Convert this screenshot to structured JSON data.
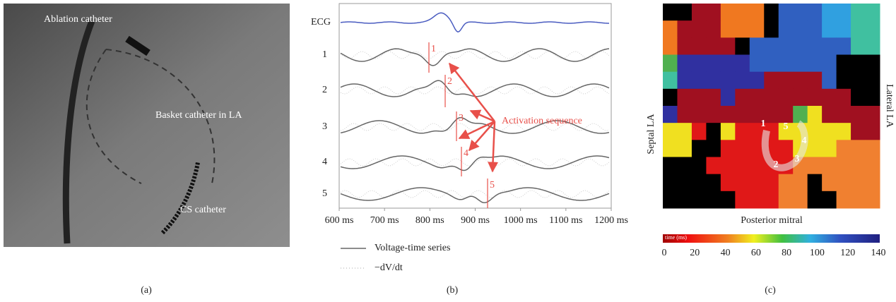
{
  "panel_a": {
    "labels": [
      "Ablation catheter",
      "Basket catheter in LA",
      "CS catheter"
    ],
    "caption": "(a)"
  },
  "panel_b": {
    "channels": [
      "ECG",
      "1",
      "2",
      "3",
      "4",
      "5"
    ],
    "markers": [
      "1",
      "2",
      "3",
      "4",
      "5"
    ],
    "annotation": "Activation sequence",
    "xlim": [
      600,
      1200
    ],
    "xticks": [
      {
        "value": 600,
        "label": "600 ms"
      },
      {
        "value": 700,
        "label": "700 ms"
      },
      {
        "value": 800,
        "label": "800 ms"
      },
      {
        "value": 900,
        "label": "900 ms"
      },
      {
        "value": 1000,
        "label": "1000 ms"
      },
      {
        "value": 1100,
        "label": "1100 ms"
      },
      {
        "value": 1200,
        "label": "1200 ms"
      }
    ],
    "legend": [
      "Voltage-time series",
      "−dV/dt"
    ],
    "caption": "(b)"
  },
  "panel_c": {
    "left_label": "Septal LA",
    "right_label": "Lateral LA",
    "bottom_label": "Posterior mitral",
    "colorbar_title": "time (ms)",
    "colorbar_lim": [
      0,
      140
    ],
    "colorbar_ticks": [
      0,
      20,
      40,
      60,
      80,
      100,
      120,
      140
    ],
    "path_labels": [
      "1",
      "2",
      "3",
      "4",
      "5"
    ],
    "caption": "(c)"
  }
}
